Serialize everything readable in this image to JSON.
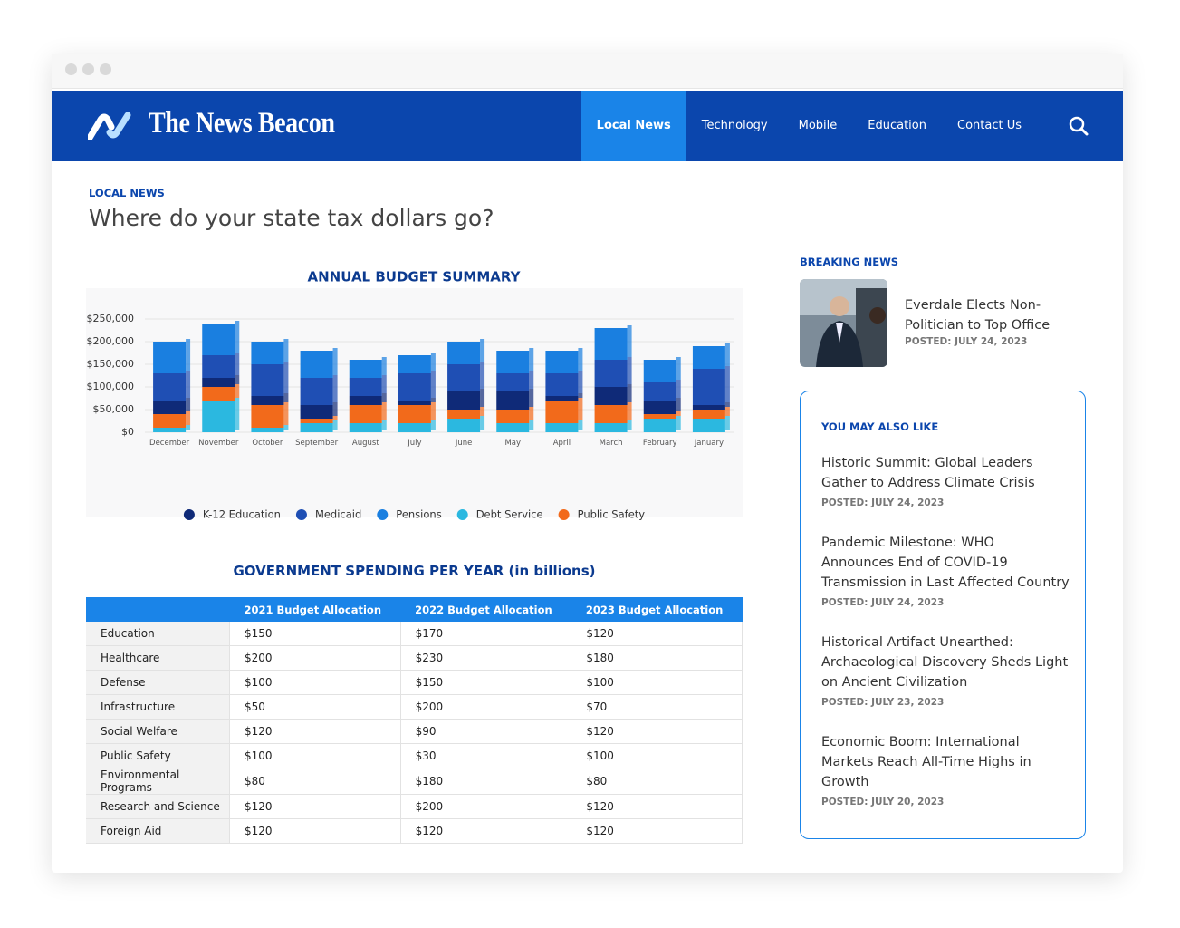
{
  "header": {
    "brand": "The News Beacon",
    "nav": [
      "Local News",
      "Technology",
      "Mobile",
      "Education",
      "Contact Us"
    ]
  },
  "article": {
    "section": "LOCAL NEWS",
    "title": "Where do your state tax dollars go?"
  },
  "chart_data": {
    "type": "bar",
    "stacked": true,
    "title": "ANNUAL BUDGET SUMMARY",
    "categories": [
      "December",
      "November",
      "October",
      "September",
      "August",
      "July",
      "June",
      "May",
      "April",
      "March",
      "February",
      "January"
    ],
    "series": [
      {
        "name": "K-12 Education",
        "color": "#0f2a78",
        "values": [
          30000,
          20000,
          20000,
          30000,
          20000,
          10000,
          40000,
          40000,
          10000,
          40000,
          30000,
          10000
        ]
      },
      {
        "name": "Medicaid",
        "color": "#1f4fb4",
        "values": [
          60000,
          50000,
          70000,
          60000,
          40000,
          60000,
          60000,
          40000,
          50000,
          60000,
          40000,
          80000
        ]
      },
      {
        "name": "Pensions",
        "color": "#1a7fe0",
        "values": [
          70000,
          70000,
          50000,
          60000,
          40000,
          40000,
          50000,
          50000,
          50000,
          70000,
          50000,
          50000
        ]
      },
      {
        "name": "Debt Service",
        "color": "#2bb8e0",
        "values": [
          10000,
          70000,
          10000,
          20000,
          20000,
          20000,
          30000,
          20000,
          20000,
          20000,
          30000,
          30000
        ]
      },
      {
        "name": "Public Safety",
        "color": "#f26a1b",
        "values": [
          30000,
          30000,
          50000,
          10000,
          40000,
          40000,
          20000,
          30000,
          50000,
          40000,
          10000,
          20000
        ]
      }
    ],
    "ylim": [
      0,
      250000
    ],
    "yticks": [
      {
        "value": 0,
        "label": "$0"
      },
      {
        "value": 50000,
        "label": "$50,000"
      },
      {
        "value": 100000,
        "label": "$100,000"
      },
      {
        "value": 150000,
        "label": "$150,000"
      },
      {
        "value": 200000,
        "label": "$200,000"
      },
      {
        "value": 250000,
        "label": "$250,000"
      }
    ],
    "grid": true,
    "legend": "bottom"
  },
  "table": {
    "title": "GOVERNMENT SPENDING PER YEAR (in billions)",
    "columns": [
      "2021 Budget Allocation",
      "2022 Budget Allocation",
      "2023 Budget Allocation"
    ],
    "rows": [
      [
        "Education",
        "$150",
        "$170",
        "$120"
      ],
      [
        "Healthcare",
        "$200",
        "$230",
        "$180"
      ],
      [
        "Defense",
        "$100",
        "$150",
        "$100"
      ],
      [
        "Infrastructure",
        "$50",
        "$200",
        "$70"
      ],
      [
        "Social Welfare",
        "$120",
        "$90",
        "$120"
      ],
      [
        "Public Safety",
        "$100",
        "$30",
        "$100"
      ],
      [
        "Environmental Programs",
        "$80",
        "$180",
        "$80"
      ],
      [
        "Research and Science",
        "$120",
        "$200",
        "$120"
      ],
      [
        "Foreign Aid",
        "$120",
        "$120",
        "$120"
      ]
    ]
  },
  "sidebar": {
    "breaking": {
      "label": "BREAKING NEWS",
      "headline": "Everdale Elects Non-Politician to Top Office",
      "posted": "POSTED: JULY 24, 2023"
    },
    "more": {
      "label": "YOU MAY ALSO LIKE",
      "items": [
        {
          "headline": "Historic Summit: Global Leaders Gather to Address Climate Crisis",
          "posted": "POSTED: JULY 24, 2023"
        },
        {
          "headline": "Pandemic Milestone: WHO Announces End of COVID-19 Transmission in Last Affected Country",
          "posted": "POSTED: JULY 24, 2023"
        },
        {
          "headline": "Historical Artifact Unearthed: Archaeological Discovery Sheds Light on Ancient Civilization",
          "posted": "POSTED: JULY 23, 2023"
        },
        {
          "headline": "Economic Boom: International Markets Reach All-Time Highs in Growth",
          "posted": "POSTED: JULY 20, 2023"
        }
      ]
    }
  }
}
